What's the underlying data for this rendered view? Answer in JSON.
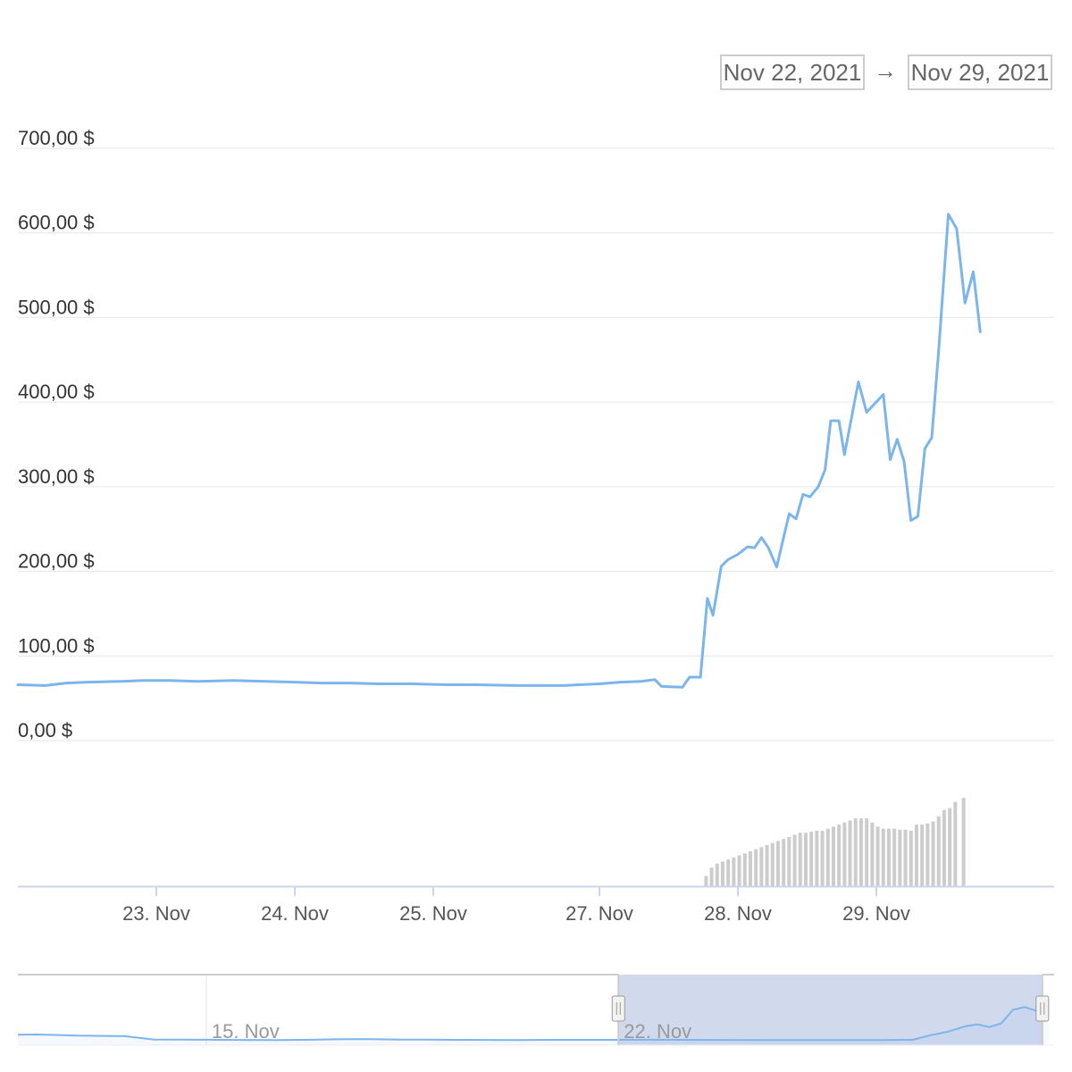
{
  "range_selector": {
    "from": "Nov 22, 2021",
    "arrow": "→",
    "to": "Nov 29, 2021"
  },
  "chart_data": {
    "type": "line",
    "title": "",
    "xlabel": "",
    "ylabel": "",
    "x_unit": "day",
    "x_range": [
      22.0,
      29.4
    ],
    "x_tick_labels": [
      {
        "day": 23.0,
        "label": "23. Nov"
      },
      {
        "day": 24.0,
        "label": "24. Nov"
      },
      {
        "day": 25.0,
        "label": "25. Nov"
      },
      {
        "day": 26.2,
        "label": "27. Nov"
      },
      {
        "day": 27.2,
        "label": "28. Nov"
      },
      {
        "day": 28.2,
        "label": "29. Nov"
      }
    ],
    "y_ticks": [
      {
        "value": 0,
        "label": "0,00 $"
      },
      {
        "value": 100,
        "label": "100,00 $"
      },
      {
        "value": 200,
        "label": "200,00 $"
      },
      {
        "value": 300,
        "label": "300,00 $"
      },
      {
        "value": 400,
        "label": "400,00 $"
      },
      {
        "value": 500,
        "label": "500,00 $"
      },
      {
        "value": 600,
        "label": "600,00 $"
      },
      {
        "value": 700,
        "label": "700,00 $"
      }
    ],
    "ylim": [
      0,
      700
    ],
    "grid": true,
    "line_color": "#7cb5ec",
    "volume_color": "#cccccc",
    "series": [
      {
        "values": [
          [
            22.0,
            66
          ],
          [
            22.2,
            65
          ],
          [
            22.35,
            68
          ],
          [
            22.5,
            69
          ],
          [
            22.75,
            70
          ],
          [
            22.9,
            71
          ],
          [
            23.1,
            71
          ],
          [
            23.3,
            70
          ],
          [
            23.55,
            71
          ],
          [
            23.8,
            70
          ],
          [
            24.0,
            69
          ],
          [
            24.2,
            68
          ],
          [
            24.4,
            68
          ],
          [
            24.6,
            67
          ],
          [
            24.85,
            67
          ],
          [
            25.1,
            66
          ],
          [
            25.3,
            66
          ],
          [
            25.6,
            65
          ],
          [
            25.8,
            65
          ],
          [
            25.95,
            65
          ],
          [
            26.05,
            66
          ],
          [
            26.2,
            67
          ],
          [
            26.35,
            69
          ],
          [
            26.5,
            70
          ],
          [
            26.6,
            72
          ],
          [
            26.65,
            64
          ],
          [
            26.8,
            63
          ],
          [
            26.85,
            75
          ],
          [
            26.93,
            75
          ],
          [
            26.98,
            168
          ],
          [
            27.02,
            148
          ],
          [
            27.08,
            206
          ],
          [
            27.13,
            214
          ],
          [
            27.2,
            220
          ],
          [
            27.27,
            229
          ],
          [
            27.32,
            228
          ],
          [
            27.37,
            240
          ],
          [
            27.42,
            228
          ],
          [
            27.48,
            205
          ],
          [
            27.52,
            233
          ],
          [
            27.57,
            268
          ],
          [
            27.62,
            262
          ],
          [
            27.67,
            291
          ],
          [
            27.72,
            288
          ],
          [
            27.78,
            300
          ],
          [
            27.83,
            320
          ],
          [
            27.87,
            378
          ],
          [
            27.93,
            378
          ],
          [
            27.97,
            338
          ],
          [
            28.07,
            424
          ],
          [
            28.13,
            388
          ],
          [
            28.25,
            409
          ],
          [
            28.3,
            332
          ],
          [
            28.35,
            356
          ],
          [
            28.4,
            330
          ],
          [
            28.45,
            260
          ],
          [
            28.5,
            265
          ],
          [
            28.55,
            345
          ],
          [
            28.6,
            358
          ],
          [
            28.65,
            460
          ],
          [
            28.72,
            622
          ],
          [
            28.78,
            605
          ],
          [
            28.84,
            517
          ],
          [
            28.9,
            554
          ],
          [
            28.95,
            483
          ]
        ]
      }
    ],
    "volume": [
      [
        26.97,
        10
      ],
      [
        27.01,
        18
      ],
      [
        27.05,
        22
      ],
      [
        27.09,
        24
      ],
      [
        27.13,
        26
      ],
      [
        27.17,
        28
      ],
      [
        27.21,
        30
      ],
      [
        27.25,
        32
      ],
      [
        27.29,
        34
      ],
      [
        27.33,
        36
      ],
      [
        27.37,
        38
      ],
      [
        27.41,
        40
      ],
      [
        27.45,
        42
      ],
      [
        27.49,
        44
      ],
      [
        27.53,
        46
      ],
      [
        27.57,
        48
      ],
      [
        27.61,
        50
      ],
      [
        27.65,
        52
      ],
      [
        27.69,
        52
      ],
      [
        27.73,
        53
      ],
      [
        27.77,
        54
      ],
      [
        27.81,
        54
      ],
      [
        27.85,
        56
      ],
      [
        27.89,
        58
      ],
      [
        27.93,
        60
      ],
      [
        27.97,
        62
      ],
      [
        28.01,
        64
      ],
      [
        28.05,
        66
      ],
      [
        28.09,
        66
      ],
      [
        28.13,
        66
      ],
      [
        28.17,
        62
      ],
      [
        28.21,
        58
      ],
      [
        28.25,
        56
      ],
      [
        28.29,
        56
      ],
      [
        28.33,
        56
      ],
      [
        28.37,
        55
      ],
      [
        28.41,
        55
      ],
      [
        28.45,
        54
      ],
      [
        28.49,
        60
      ],
      [
        28.53,
        60
      ],
      [
        28.57,
        61
      ],
      [
        28.61,
        63
      ],
      [
        28.65,
        68
      ],
      [
        28.69,
        74
      ],
      [
        28.73,
        76
      ],
      [
        28.77,
        82
      ],
      [
        28.83,
        86
      ]
    ],
    "navigator": {
      "labels": [
        {
          "day": 15.0,
          "label": "15. Nov"
        },
        {
          "day": 22.0,
          "label": "22. Nov"
        }
      ],
      "x_range": [
        11.8,
        29.4
      ],
      "selected_range": [
        22.0,
        29.2
      ],
      "values": [
        [
          11.8,
          115
        ],
        [
          12.1,
          118
        ],
        [
          12.5,
          112
        ],
        [
          12.8,
          105
        ],
        [
          13.6,
          100
        ],
        [
          14.1,
          63
        ],
        [
          14.6,
          62
        ],
        [
          15.0,
          60
        ],
        [
          15.5,
          58
        ],
        [
          16.2,
          57
        ],
        [
          16.8,
          60
        ],
        [
          17.3,
          66
        ],
        [
          17.8,
          66
        ],
        [
          18.3,
          62
        ],
        [
          18.8,
          61
        ],
        [
          19.3,
          59
        ],
        [
          19.8,
          58
        ],
        [
          20.3,
          57
        ],
        [
          20.8,
          59
        ],
        [
          21.3,
          59
        ],
        [
          21.8,
          59
        ],
        [
          22.5,
          60
        ],
        [
          23.5,
          58
        ],
        [
          24.5,
          57
        ],
        [
          25.5,
          57
        ],
        [
          26.5,
          57
        ],
        [
          27.0,
          59
        ],
        [
          27.3,
          110
        ],
        [
          27.6,
          150
        ],
        [
          27.9,
          210
        ],
        [
          28.1,
          230
        ],
        [
          28.3,
          200
        ],
        [
          28.5,
          240
        ],
        [
          28.7,
          390
        ],
        [
          28.9,
          420
        ],
        [
          29.1,
          380
        ],
        [
          29.3,
          410
        ]
      ]
    }
  }
}
